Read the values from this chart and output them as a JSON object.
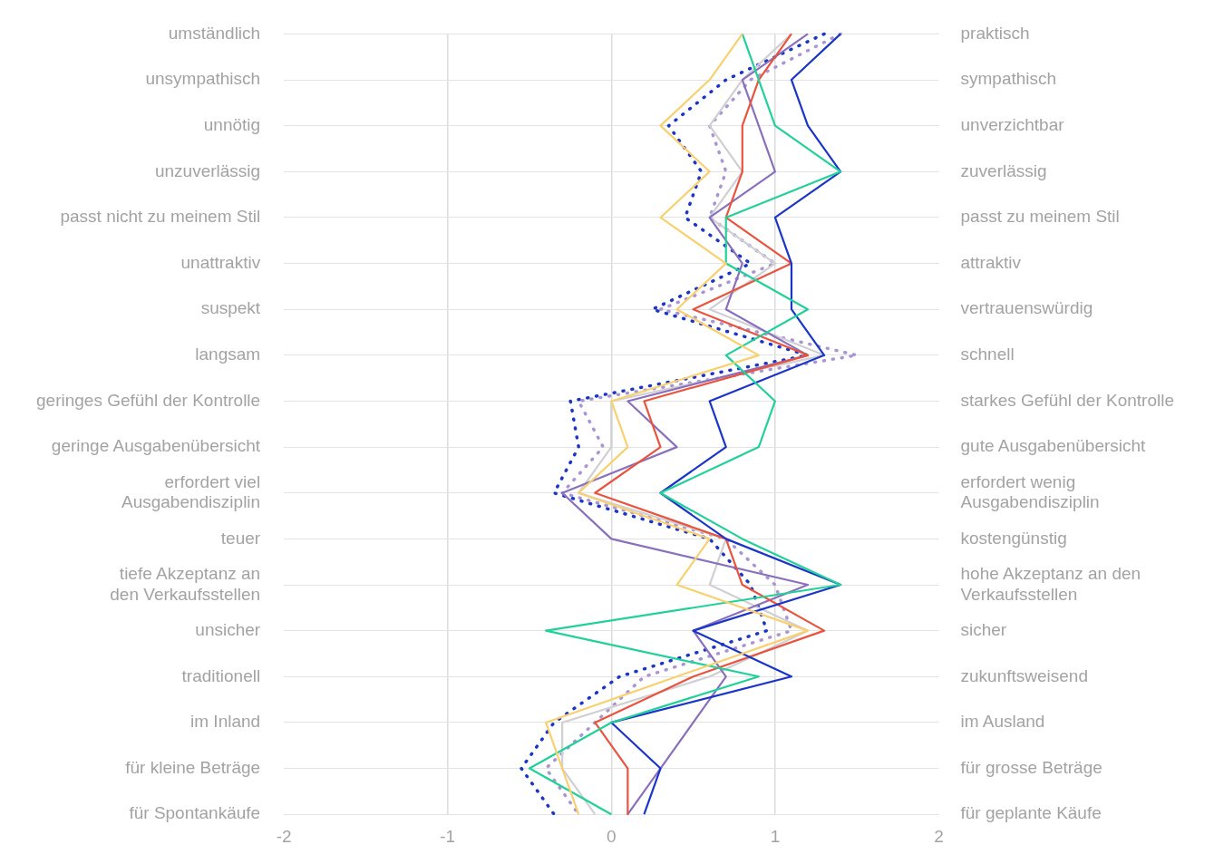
{
  "chart_data": {
    "type": "line",
    "orientation": "horizontal",
    "categories": [
      "umständlich",
      "unsympathisch",
      "unnötig",
      "unzuverlässig",
      "passt nicht zu meinem Stil",
      "unattraktiv",
      "suspekt",
      "langsam",
      "geringes Gefühl der Kontrolle",
      "geringe Ausgabenübersicht",
      "erfordert viel\nAusgabendisziplin",
      "teuer",
      "tiefe Akzeptanz an\nden Verkaufsstellen",
      "unsicher",
      "traditionell",
      "im Inland",
      "für kleine Beträge",
      "für Spontankäufe"
    ],
    "y2_categories": [
      "praktisch",
      "sympathisch",
      "unverzichtbar",
      "zuverlässig",
      "passt zu meinem Stil",
      "attraktiv",
      "vertrauenswürdig",
      "schnell",
      "starkes Gefühl der Kontrolle",
      "gute Ausgabenübersicht",
      "erfordert wenig\nAusgabendisziplin",
      "kostengünstig",
      "hohe Akzeptanz an den\nVerkaufsstellen",
      "sicher",
      "zukunftsweisend",
      "im Ausland",
      "für grosse Beträge",
      "für geplante Käufe"
    ],
    "xlim": [
      -2,
      2
    ],
    "xticks": [
      -2,
      -1,
      0,
      1,
      2
    ],
    "grid": true,
    "legend": false,
    "marker": "none",
    "series": [
      {
        "color": "#f8d070",
        "values": [
          0.8,
          0.6,
          0.3,
          0.6,
          0.3,
          0.7,
          0.4,
          0.9,
          0,
          0.1,
          -0.2,
          0.6,
          0.4,
          1.2,
          0.4,
          -0.4,
          -0.3,
          -0.2
        ]
      },
      {
        "color": "#22d09a",
        "values": [
          0.8,
          0.9,
          1.0,
          1.4,
          0.7,
          0.7,
          1.2,
          0.7,
          1.0,
          0.9,
          0.3,
          0.8,
          1.4,
          -0.4,
          0.9,
          0,
          -0.5,
          0
        ]
      },
      {
        "color": "#1a35c8",
        "values": [
          1.4,
          1.1,
          1.2,
          1.4,
          1.0,
          1.1,
          1.1,
          1.3,
          0.6,
          0.7,
          0.3,
          0.7,
          1.4,
          0.5,
          1.1,
          0,
          0.3,
          0.2
        ]
      },
      {
        "color": "#e8543e",
        "values": [
          1.1,
          0.9,
          0.8,
          0.8,
          0.7,
          1.1,
          0.5,
          1.2,
          0.2,
          0.3,
          -0.1,
          0.7,
          0.8,
          1.3,
          0.5,
          -0.1,
          0.1,
          0.1
        ]
      },
      {
        "color": "#8a70bc",
        "values": [
          1.2,
          0.8,
          0.9,
          1.0,
          0.6,
          0.8,
          0.7,
          1.2,
          0.1,
          0.4,
          -0.3,
          0,
          1.2,
          0.5,
          0.7,
          0.5,
          0.3,
          0.1
        ]
      },
      {
        "color": "#cfcfd4",
        "values": [
          1.1,
          0.8,
          0.6,
          0.8,
          0.6,
          1.0,
          0.6,
          1.3,
          0,
          0,
          -0.2,
          0.7,
          0.6,
          1.2,
          0.6,
          -0.3,
          -0.3,
          -0.1
        ]
      },
      {
        "color": "#1a35c8",
        "line_style": "dotted",
        "values": [
          1.3,
          0.7,
          0.35,
          0.55,
          0.45,
          0.85,
          0.25,
          1.2,
          -0.25,
          -0.2,
          -0.35,
          0.6,
          0.85,
          0.95,
          0.05,
          -0.35,
          -0.55,
          -0.35
        ]
      },
      {
        "color": "#a996d2",
        "line_style": "dotted",
        "values": [
          1.4,
          0.85,
          0.6,
          0.7,
          0.6,
          1.0,
          0.3,
          1.5,
          -0.2,
          -0.05,
          -0.3,
          0.7,
          1.0,
          1.1,
          0.2,
          -0.1,
          -0.4,
          -0.2
        ]
      }
    ]
  }
}
